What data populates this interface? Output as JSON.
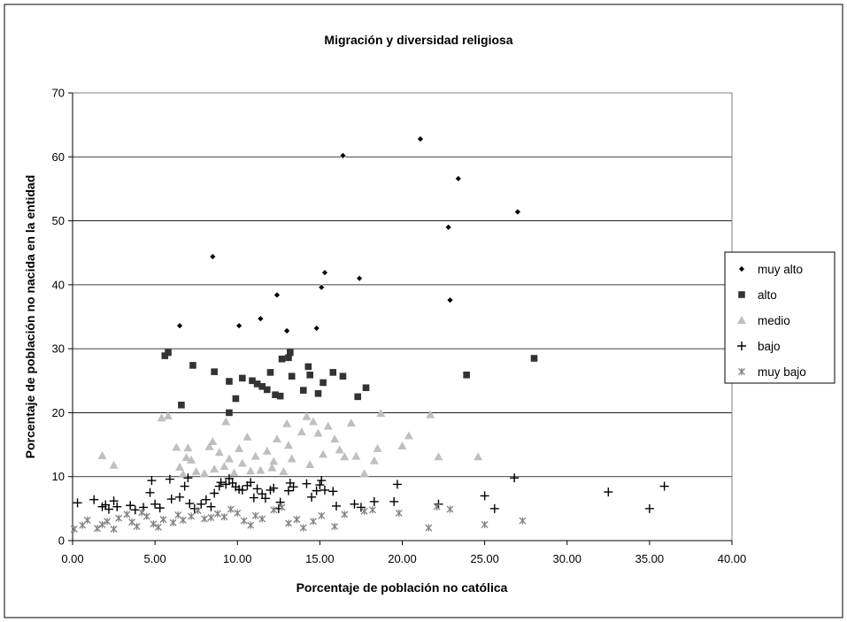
{
  "chart_data": {
    "type": "scatter",
    "title": "Migración y diversidad religiosa",
    "xlabel": "Porcentaje de población no católica",
    "ylabel": "Porcentaje de población no nacida en la entidad",
    "xlim": [
      0,
      40
    ],
    "ylim": [
      0,
      70
    ],
    "x_ticks": [
      "0.00",
      "5.00",
      "10.00",
      "15.00",
      "20.00",
      "25.00",
      "30.00",
      "35.00",
      "40.00"
    ],
    "y_ticks": [
      "0",
      "10",
      "20",
      "30",
      "40",
      "50",
      "60",
      "70"
    ],
    "grid": "horizontal",
    "legend_position": "right",
    "series": [
      {
        "name": "muy alto",
        "marker": "diamond",
        "color": "#000000",
        "points": [
          [
            6.5,
            33.6
          ],
          [
            8.5,
            44.4
          ],
          [
            10.1,
            33.6
          ],
          [
            11.4,
            34.7
          ],
          [
            12.4,
            38.4
          ],
          [
            13.0,
            32.8
          ],
          [
            14.8,
            33.2
          ],
          [
            15.1,
            39.6
          ],
          [
            15.3,
            41.9
          ],
          [
            16.4,
            60.2
          ],
          [
            17.4,
            41.0
          ],
          [
            21.1,
            62.8
          ],
          [
            22.8,
            49.0
          ],
          [
            22.9,
            37.6
          ],
          [
            23.4,
            56.6
          ],
          [
            27.0,
            51.4
          ]
        ]
      },
      {
        "name": "alto",
        "marker": "square",
        "color": "#333333",
        "points": [
          [
            5.6,
            28.9
          ],
          [
            5.8,
            29.4
          ],
          [
            6.6,
            21.2
          ],
          [
            7.3,
            27.4
          ],
          [
            8.6,
            26.4
          ],
          [
            9.5,
            24.9
          ],
          [
            9.5,
            20.0
          ],
          [
            9.9,
            22.2
          ],
          [
            10.3,
            25.4
          ],
          [
            10.9,
            25.0
          ],
          [
            11.2,
            24.5
          ],
          [
            11.5,
            24.1
          ],
          [
            11.8,
            23.6
          ],
          [
            12.0,
            26.3
          ],
          [
            12.3,
            22.8
          ],
          [
            12.6,
            22.6
          ],
          [
            12.7,
            28.4
          ],
          [
            13.1,
            28.6
          ],
          [
            13.2,
            29.4
          ],
          [
            13.3,
            25.7
          ],
          [
            14.0,
            23.5
          ],
          [
            14.3,
            27.2
          ],
          [
            14.4,
            25.9
          ],
          [
            14.9,
            23.0
          ],
          [
            15.2,
            24.7
          ],
          [
            15.8,
            26.3
          ],
          [
            16.4,
            25.7
          ],
          [
            17.3,
            22.5
          ],
          [
            17.8,
            23.9
          ],
          [
            23.9,
            25.9
          ],
          [
            28.0,
            28.5
          ]
        ]
      },
      {
        "name": "medio",
        "marker": "triangle",
        "color": "#bfbfbf",
        "points": [
          [
            1.8,
            13.3
          ],
          [
            2.5,
            11.8
          ],
          [
            5.4,
            19.2
          ],
          [
            5.8,
            19.5
          ],
          [
            6.3,
            14.6
          ],
          [
            6.5,
            11.5
          ],
          [
            6.7,
            10.4
          ],
          [
            6.9,
            13.0
          ],
          [
            7.0,
            14.5
          ],
          [
            7.2,
            12.6
          ],
          [
            7.5,
            10.8
          ],
          [
            8.0,
            10.5
          ],
          [
            8.3,
            14.7
          ],
          [
            8.5,
            15.5
          ],
          [
            8.6,
            11.2
          ],
          [
            8.9,
            13.8
          ],
          [
            9.2,
            11.6
          ],
          [
            9.3,
            18.6
          ],
          [
            9.5,
            12.8
          ],
          [
            9.8,
            10.6
          ],
          [
            10.1,
            14.4
          ],
          [
            10.3,
            12.1
          ],
          [
            10.6,
            16.2
          ],
          [
            10.8,
            10.9
          ],
          [
            11.1,
            13.2
          ],
          [
            11.4,
            11.0
          ],
          [
            11.8,
            14.0
          ],
          [
            12.1,
            11.4
          ],
          [
            12.2,
            12.4
          ],
          [
            12.4,
            15.9
          ],
          [
            12.8,
            10.8
          ],
          [
            13.0,
            18.3
          ],
          [
            13.1,
            14.9
          ],
          [
            13.3,
            12.8
          ],
          [
            13.9,
            17.0
          ],
          [
            14.2,
            19.4
          ],
          [
            14.4,
            11.9
          ],
          [
            14.6,
            18.6
          ],
          [
            14.9,
            16.8
          ],
          [
            15.2,
            13.5
          ],
          [
            15.5,
            17.9
          ],
          [
            15.9,
            15.9
          ],
          [
            16.2,
            14.2
          ],
          [
            16.5,
            13.1
          ],
          [
            16.9,
            18.4
          ],
          [
            17.2,
            13.2
          ],
          [
            17.7,
            10.5
          ],
          [
            18.3,
            12.5
          ],
          [
            18.5,
            14.4
          ],
          [
            18.7,
            19.9
          ],
          [
            20.0,
            14.8
          ],
          [
            20.4,
            16.4
          ],
          [
            21.7,
            19.7
          ],
          [
            22.2,
            13.1
          ],
          [
            24.6,
            13.1
          ]
        ]
      },
      {
        "name": "bajo",
        "marker": "plus",
        "color": "#000000",
        "points": [
          [
            0.3,
            5.9
          ],
          [
            1.3,
            6.4
          ],
          [
            1.8,
            5.3
          ],
          [
            2.0,
            5.6
          ],
          [
            2.2,
            4.9
          ],
          [
            2.5,
            6.2
          ],
          [
            2.7,
            5.3
          ],
          [
            3.5,
            5.5
          ],
          [
            3.8,
            4.8
          ],
          [
            4.3,
            5.2
          ],
          [
            4.7,
            7.5
          ],
          [
            4.8,
            9.4
          ],
          [
            5.0,
            5.7
          ],
          [
            5.3,
            5.1
          ],
          [
            5.9,
            9.6
          ],
          [
            6.0,
            6.5
          ],
          [
            6.5,
            6.8
          ],
          [
            6.8,
            8.5
          ],
          [
            7.0,
            9.8
          ],
          [
            7.1,
            5.8
          ],
          [
            7.4,
            5.0
          ],
          [
            7.8,
            5.7
          ],
          [
            8.1,
            6.4
          ],
          [
            8.4,
            5.3
          ],
          [
            8.6,
            7.4
          ],
          [
            8.9,
            8.5
          ],
          [
            9.0,
            9.1
          ],
          [
            9.3,
            8.8
          ],
          [
            9.5,
            9.7
          ],
          [
            9.7,
            9.0
          ],
          [
            9.9,
            8.4
          ],
          [
            10.1,
            8.0
          ],
          [
            10.3,
            7.9
          ],
          [
            10.6,
            8.6
          ],
          [
            10.8,
            9.1
          ],
          [
            11.0,
            6.7
          ],
          [
            11.2,
            8.1
          ],
          [
            11.5,
            7.3
          ],
          [
            11.7,
            6.6
          ],
          [
            12.0,
            7.9
          ],
          [
            12.2,
            8.2
          ],
          [
            12.5,
            5.0
          ],
          [
            12.6,
            6.0
          ],
          [
            13.1,
            7.8
          ],
          [
            13.2,
            9.0
          ],
          [
            13.4,
            8.4
          ],
          [
            14.2,
            8.9
          ],
          [
            14.5,
            6.8
          ],
          [
            14.8,
            7.8
          ],
          [
            15.0,
            8.7
          ],
          [
            15.1,
            9.4
          ],
          [
            15.3,
            7.9
          ],
          [
            15.8,
            7.7
          ],
          [
            16.0,
            5.4
          ],
          [
            17.1,
            5.7
          ],
          [
            17.5,
            5.2
          ],
          [
            18.3,
            6.1
          ],
          [
            19.5,
            6.1
          ],
          [
            19.7,
            8.8
          ],
          [
            22.2,
            5.7
          ],
          [
            25.0,
            7.0
          ],
          [
            25.6,
            5.0
          ],
          [
            26.8,
            9.8
          ],
          [
            32.5,
            7.6
          ],
          [
            35.0,
            5.0
          ],
          [
            35.9,
            8.5
          ]
        ]
      },
      {
        "name": "muy bajo",
        "marker": "asterisk",
        "color": "#808080",
        "points": [
          [
            0.1,
            1.8
          ],
          [
            0.6,
            2.4
          ],
          [
            0.9,
            3.2
          ],
          [
            1.5,
            1.9
          ],
          [
            1.8,
            2.5
          ],
          [
            2.1,
            3.0
          ],
          [
            2.5,
            1.8
          ],
          [
            2.8,
            3.5
          ],
          [
            3.3,
            4.1
          ],
          [
            3.6,
            2.9
          ],
          [
            3.9,
            2.2
          ],
          [
            4.2,
            4.4
          ],
          [
            4.5,
            3.8
          ],
          [
            4.9,
            2.6
          ],
          [
            5.2,
            2.1
          ],
          [
            5.5,
            3.3
          ],
          [
            6.1,
            2.8
          ],
          [
            6.4,
            4.0
          ],
          [
            6.7,
            3.2
          ],
          [
            7.2,
            3.8
          ],
          [
            7.6,
            4.7
          ],
          [
            8.0,
            3.4
          ],
          [
            8.4,
            3.6
          ],
          [
            8.8,
            4.2
          ],
          [
            9.2,
            3.7
          ],
          [
            9.6,
            4.9
          ],
          [
            10.0,
            4.3
          ],
          [
            10.4,
            3.1
          ],
          [
            10.8,
            2.4
          ],
          [
            11.1,
            3.9
          ],
          [
            11.5,
            3.4
          ],
          [
            12.2,
            4.8
          ],
          [
            12.7,
            5.2
          ],
          [
            13.1,
            2.7
          ],
          [
            13.6,
            3.3
          ],
          [
            14.0,
            2.0
          ],
          [
            14.6,
            3.0
          ],
          [
            15.1,
            3.9
          ],
          [
            15.9,
            2.2
          ],
          [
            16.5,
            4.1
          ],
          [
            17.7,
            4.6
          ],
          [
            18.2,
            4.8
          ],
          [
            19.8,
            4.3
          ],
          [
            21.6,
            2.0
          ],
          [
            22.1,
            5.3
          ],
          [
            22.9,
            4.9
          ],
          [
            25.0,
            2.5
          ],
          [
            27.3,
            3.1
          ]
        ]
      }
    ]
  }
}
